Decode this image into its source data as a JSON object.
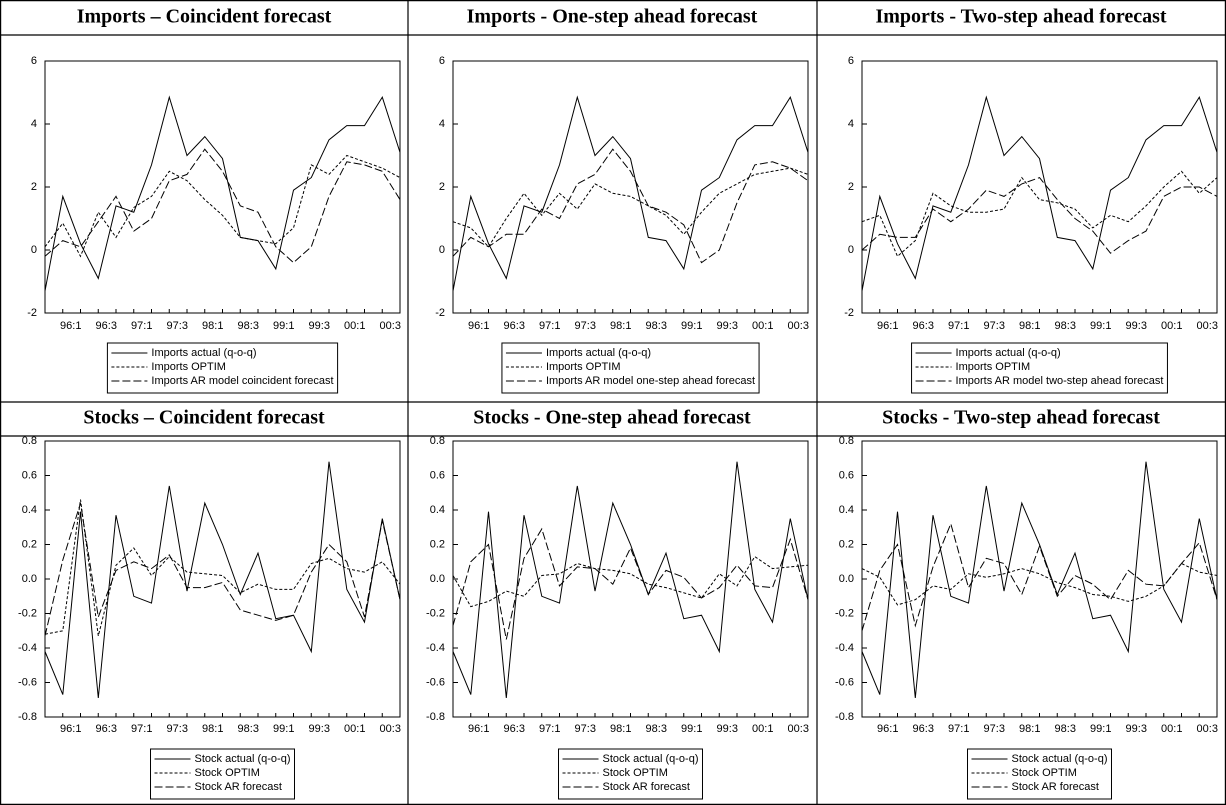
{
  "chart_data": [
    {
      "type": "line",
      "title": "Imports – Coincident forecast",
      "categories": [
        null,
        "96:1",
        null,
        "96:3",
        null,
        "97:1",
        null,
        "97:3",
        null,
        "98:1",
        null,
        "98:3",
        null,
        "99:1",
        null,
        "99:3",
        null,
        "00:1",
        null,
        "00:3",
        null
      ],
      "ylim": [
        -2,
        6
      ],
      "yticks": [
        -2,
        0,
        2,
        4,
        6
      ],
      "series": [
        {
          "name": "Imports actual (q-o-q)",
          "color": "#000000",
          "dash": "solid",
          "values": [
            -1.3,
            1.7,
            0.2,
            -0.9,
            1.4,
            1.2,
            2.7,
            4.85,
            3.0,
            3.6,
            2.9,
            0.4,
            0.3,
            -0.6,
            1.9,
            2.3,
            3.5,
            3.95,
            3.95,
            4.85,
            3.1
          ]
        },
        {
          "name": "Imports OPTIM",
          "color": "#000000",
          "dash": "short",
          "values": [
            0.1,
            0.85,
            -0.2,
            1.2,
            0.4,
            1.35,
            1.7,
            2.5,
            2.2,
            1.6,
            1.1,
            0.4,
            0.3,
            0.2,
            0.7,
            2.7,
            2.4,
            3.0,
            2.8,
            2.6,
            2.3
          ]
        },
        {
          "name": "Imports AR model coincident forecast",
          "color": "#000000",
          "dash": "long",
          "values": [
            -0.2,
            0.3,
            0.1,
            0.9,
            1.7,
            0.6,
            1.0,
            2.2,
            2.4,
            3.2,
            2.5,
            1.4,
            1.2,
            0.1,
            -0.4,
            0.1,
            1.7,
            2.8,
            2.7,
            2.5,
            1.6
          ]
        }
      ]
    },
    {
      "type": "line",
      "title": "Imports - One-step ahead forecast",
      "categories": [
        null,
        "96:1",
        null,
        "96:3",
        null,
        "97:1",
        null,
        "97:3",
        null,
        "98:1",
        null,
        "98:3",
        null,
        "99:1",
        null,
        "99:3",
        null,
        "00:1",
        null,
        "00:3",
        null
      ],
      "ylim": [
        -2,
        6
      ],
      "yticks": [
        -2,
        0,
        2,
        4,
        6
      ],
      "series": [
        {
          "name": "Imports actual (q-o-q)",
          "color": "#000000",
          "dash": "solid",
          "values": [
            -1.3,
            1.7,
            0.2,
            -0.9,
            1.4,
            1.2,
            2.7,
            4.85,
            3.0,
            3.6,
            2.9,
            0.4,
            0.3,
            -0.6,
            1.9,
            2.3,
            3.5,
            3.95,
            3.95,
            4.85,
            3.1
          ]
        },
        {
          "name": "Imports OPTIM",
          "color": "#000000",
          "dash": "short",
          "values": [
            0.9,
            0.7,
            0.1,
            1.0,
            1.8,
            1.1,
            1.8,
            1.3,
            2.1,
            1.8,
            1.7,
            1.4,
            1.1,
            0.5,
            1.2,
            1.8,
            2.1,
            2.4,
            2.5,
            2.6,
            2.4
          ]
        },
        {
          "name": "Imports AR model one-step ahead forecast",
          "color": "#000000",
          "dash": "long",
          "values": [
            -0.2,
            0.4,
            0.1,
            0.5,
            0.5,
            1.3,
            1.0,
            2.1,
            2.4,
            3.2,
            2.5,
            1.4,
            1.2,
            0.8,
            -0.4,
            0.0,
            1.5,
            2.7,
            2.8,
            2.6,
            2.2
          ]
        }
      ]
    },
    {
      "type": "line",
      "title": "Imports - Two-step ahead forecast",
      "categories": [
        null,
        "96:1",
        null,
        "96:3",
        null,
        "97:1",
        null,
        "97:3",
        null,
        "98:1",
        null,
        "98:3",
        null,
        "99:1",
        null,
        "99:3",
        null,
        "00:1",
        null,
        "00:3",
        null
      ],
      "ylim": [
        -2,
        6
      ],
      "yticks": [
        -2,
        0,
        2,
        4,
        6
      ],
      "series": [
        {
          "name": "Imports actual (q-o-q)",
          "color": "#000000",
          "dash": "solid",
          "values": [
            -1.3,
            1.7,
            0.2,
            -0.9,
            1.4,
            1.2,
            2.7,
            4.85,
            3.0,
            3.6,
            2.9,
            0.4,
            0.3,
            -0.6,
            1.9,
            2.3,
            3.5,
            3.95,
            3.95,
            4.85,
            3.1
          ]
        },
        {
          "name": "Imports OPTIM",
          "color": "#000000",
          "dash": "short",
          "values": [
            0.9,
            1.1,
            -0.2,
            0.3,
            1.8,
            1.4,
            1.2,
            1.2,
            1.3,
            2.3,
            1.6,
            1.5,
            1.3,
            0.7,
            1.1,
            0.9,
            1.4,
            2.0,
            2.5,
            1.8,
            2.3
          ]
        },
        {
          "name": "Imports AR model two-step ahead forecast",
          "color": "#000000",
          "dash": "long",
          "values": [
            0.0,
            0.5,
            0.4,
            0.4,
            1.3,
            0.9,
            1.3,
            1.9,
            1.7,
            2.1,
            2.3,
            1.6,
            1.0,
            0.6,
            -0.1,
            0.3,
            0.6,
            1.7,
            2.0,
            2.0,
            1.7
          ]
        }
      ]
    },
    {
      "type": "line",
      "title": "Stocks – Coincident forecast",
      "categories": [
        null,
        "96:1",
        null,
        "96:3",
        null,
        "97:1",
        null,
        "97:3",
        null,
        "98:1",
        null,
        "98:3",
        null,
        "99:1",
        null,
        "99:3",
        null,
        "00:1",
        null,
        "00:3",
        null
      ],
      "ylim": [
        -0.8,
        0.8
      ],
      "yticks": [
        -0.8,
        -0.6,
        -0.4,
        -0.2,
        {
          "value": 0,
          "label": "0.0"
        },
        0.2,
        0.4,
        0.6,
        0.8
      ],
      "series": [
        {
          "name": "Stock actual (q-o-q)",
          "color": "#000000",
          "dash": "solid",
          "values": [
            -0.42,
            -0.67,
            0.39,
            -0.69,
            0.37,
            -0.1,
            -0.14,
            0.54,
            -0.07,
            0.44,
            0.2,
            -0.09,
            0.15,
            -0.23,
            -0.21,
            -0.42,
            0.68,
            -0.06,
            -0.25,
            0.35,
            -0.12
          ]
        },
        {
          "name": "Stock OPTIM",
          "color": "#000000",
          "dash": "short",
          "values": [
            -0.32,
            -0.3,
            0.46,
            -0.33,
            0.08,
            0.18,
            0.02,
            0.13,
            0.04,
            0.03,
            0.02,
            -0.08,
            -0.03,
            -0.06,
            -0.06,
            0.09,
            0.12,
            0.06,
            0.04,
            0.1,
            -0.03
          ]
        },
        {
          "name": "Stock AR forecast",
          "color": "#000000",
          "dash": "long",
          "values": [
            -0.33,
            0.11,
            0.44,
            -0.22,
            0.05,
            0.1,
            0.06,
            0.14,
            -0.05,
            -0.05,
            -0.02,
            -0.18,
            -0.21,
            -0.24,
            -0.21,
            0.04,
            0.2,
            0.1,
            -0.22,
            0.34,
            -0.12
          ]
        }
      ]
    },
    {
      "type": "line",
      "title": "Stocks - One-step ahead forecast",
      "categories": [
        null,
        "96:1",
        null,
        "96:3",
        null,
        "97:1",
        null,
        "97:3",
        null,
        "98:1",
        null,
        "98:3",
        null,
        "99:1",
        null,
        "99:3",
        null,
        "00:1",
        null,
        "00:3",
        null
      ],
      "ylim": [
        -0.8,
        0.8
      ],
      "yticks": [
        -0.8,
        -0.6,
        -0.4,
        -0.2,
        {
          "value": 0,
          "label": "0.0"
        },
        0.2,
        0.4,
        0.6,
        0.8
      ],
      "series": [
        {
          "name": "Stock actual (q-o-q)",
          "color": "#000000",
          "dash": "solid",
          "values": [
            -0.42,
            -0.67,
            0.39,
            -0.69,
            0.37,
            -0.1,
            -0.14,
            0.54,
            -0.07,
            0.44,
            0.2,
            -0.09,
            0.15,
            -0.23,
            -0.21,
            -0.42,
            0.68,
            -0.06,
            -0.25,
            0.35,
            -0.12
          ]
        },
        {
          "name": "Stock OPTIM",
          "color": "#000000",
          "dash": "short",
          "values": [
            0.02,
            -0.16,
            -0.13,
            -0.07,
            -0.1,
            0.02,
            0.03,
            0.09,
            0.06,
            0.05,
            0.03,
            -0.03,
            -0.05,
            -0.08,
            -0.11,
            0.03,
            -0.04,
            0.13,
            0.06,
            0.07,
            0.08
          ]
        },
        {
          "name": "Stock AR forecast",
          "color": "#000000",
          "dash": "long",
          "values": [
            -0.27,
            0.1,
            0.2,
            -0.35,
            0.12,
            0.29,
            -0.04,
            0.07,
            0.06,
            -0.03,
            0.18,
            -0.09,
            0.05,
            0.01,
            -0.11,
            -0.05,
            0.08,
            -0.04,
            -0.05,
            0.23,
            -0.12
          ]
        }
      ]
    },
    {
      "type": "line",
      "title": "Stocks - Two-step ahead forecast",
      "categories": [
        null,
        "96:1",
        null,
        "96:3",
        null,
        "97:1",
        null,
        "97:3",
        null,
        "98:1",
        null,
        "98:3",
        null,
        "99:1",
        null,
        "99:3",
        null,
        "00:1",
        null,
        "00:3",
        null
      ],
      "ylim": [
        -0.8,
        0.8
      ],
      "yticks": [
        -0.8,
        -0.6,
        -0.4,
        -0.2,
        {
          "value": 0,
          "label": "0.0"
        },
        0.2,
        0.4,
        0.6,
        0.8
      ],
      "series": [
        {
          "name": "Stock actual (q-o-q)",
          "color": "#000000",
          "dash": "solid",
          "values": [
            -0.42,
            -0.67,
            0.39,
            -0.69,
            0.37,
            -0.1,
            -0.14,
            0.54,
            -0.07,
            0.44,
            0.2,
            -0.09,
            0.15,
            -0.23,
            -0.21,
            -0.42,
            0.68,
            -0.06,
            -0.25,
            0.35,
            -0.12
          ]
        },
        {
          "name": "Stock OPTIM",
          "color": "#000000",
          "dash": "short",
          "values": [
            0.06,
            0.01,
            -0.15,
            -0.12,
            -0.04,
            -0.06,
            0.03,
            0.01,
            0.03,
            0.06,
            0.03,
            -0.02,
            -0.05,
            -0.09,
            -0.1,
            -0.13,
            -0.1,
            -0.04,
            0.09,
            0.04,
            0.02
          ]
        },
        {
          "name": "Stock AR forecast",
          "color": "#000000",
          "dash": "long",
          "values": [
            -0.3,
            0.05,
            0.2,
            -0.27,
            0.07,
            0.32,
            -0.05,
            0.12,
            0.09,
            -0.09,
            0.19,
            -0.1,
            0.02,
            -0.03,
            -0.12,
            0.05,
            -0.03,
            -0.04,
            0.09,
            0.21,
            -0.12
          ]
        }
      ]
    }
  ]
}
